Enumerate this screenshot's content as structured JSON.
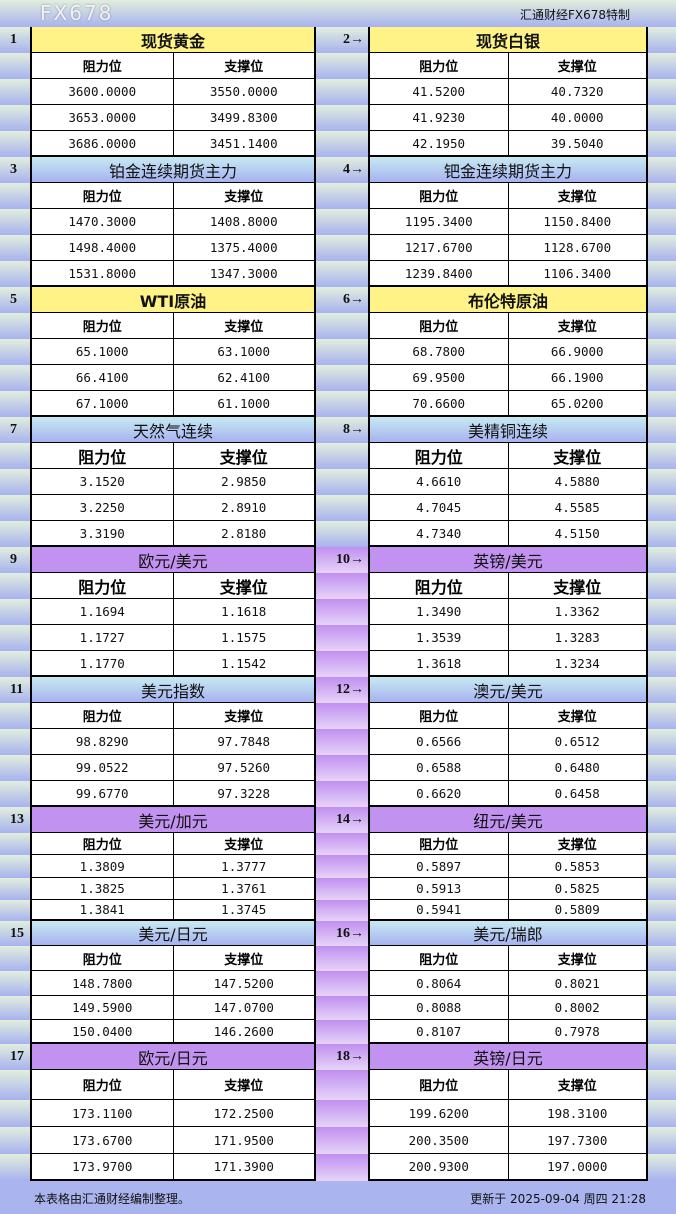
{
  "header": {
    "brand": "汇通财经FX678特制"
  },
  "labels": {
    "resistance": "阻力位",
    "support": "支撑位"
  },
  "colors": {
    "yellow": "#fff388",
    "blue": "#a7b2f0",
    "purple": "#c192f0"
  },
  "sections": [
    {
      "num": "1",
      "title": "现货黄金",
      "style": "yellow",
      "rows": [
        [
          "3600.0000",
          "3550.0000"
        ],
        [
          "3653.0000",
          "3499.8300"
        ],
        [
          "3686.0000",
          "3451.1400"
        ]
      ]
    },
    {
      "num": "2→",
      "title": "现货白银",
      "style": "yellow",
      "rows": [
        [
          "41.5200",
          "40.7320"
        ],
        [
          "41.9230",
          "40.0000"
        ],
        [
          "42.1950",
          "39.5040"
        ]
      ]
    },
    {
      "num": "3",
      "title": "铂金连续期货主力",
      "style": "blue",
      "rows": [
        [
          "1470.3000",
          "1408.8000"
        ],
        [
          "1498.4000",
          "1375.4000"
        ],
        [
          "1531.8000",
          "1347.3000"
        ]
      ]
    },
    {
      "num": "4→",
      "title": "钯金连续期货主力",
      "style": "blue",
      "rows": [
        [
          "1195.3400",
          "1150.8400"
        ],
        [
          "1217.6700",
          "1128.6700"
        ],
        [
          "1239.8400",
          "1106.3400"
        ]
      ]
    },
    {
      "num": "5",
      "title": "WTI原油",
      "style": "yellow",
      "rows": [
        [
          "65.1000",
          "63.1000"
        ],
        [
          "66.4100",
          "62.4100"
        ],
        [
          "67.1000",
          "61.1000"
        ]
      ]
    },
    {
      "num": "6→",
      "title": "布伦特原油",
      "style": "yellow",
      "rows": [
        [
          "68.7800",
          "66.9000"
        ],
        [
          "69.9500",
          "66.1900"
        ],
        [
          "70.6600",
          "65.0200"
        ]
      ]
    },
    {
      "num": "7",
      "title": "天然气连续",
      "style": "blue",
      "rows": [
        [
          "3.1520",
          "2.9850"
        ],
        [
          "3.2250",
          "2.8910"
        ],
        [
          "3.3190",
          "2.8180"
        ]
      ]
    },
    {
      "num": "8→",
      "title": "美精铜连续",
      "style": "blue",
      "rows": [
        [
          "4.6610",
          "4.5880"
        ],
        [
          "4.7045",
          "4.5585"
        ],
        [
          "4.7340",
          "4.5150"
        ]
      ]
    },
    {
      "num": "9",
      "title": "欧元/美元",
      "style": "purple",
      "rows": [
        [
          "1.1694",
          "1.1618"
        ],
        [
          "1.1727",
          "1.1575"
        ],
        [
          "1.1770",
          "1.1542"
        ]
      ]
    },
    {
      "num": "10→",
      "title": "英镑/美元",
      "style": "purple",
      "rows": [
        [
          "1.3490",
          "1.3362"
        ],
        [
          "1.3539",
          "1.3283"
        ],
        [
          "1.3618",
          "1.3234"
        ]
      ]
    },
    {
      "num": "11",
      "title": "美元指数",
      "style": "blue",
      "rows": [
        [
          "98.8290",
          "97.7848"
        ],
        [
          "99.0522",
          "97.5260"
        ],
        [
          "99.6770",
          "97.3228"
        ]
      ]
    },
    {
      "num": "12→",
      "title": "澳元/美元",
      "style": "blue",
      "rows": [
        [
          "0.6566",
          "0.6512"
        ],
        [
          "0.6588",
          "0.6480"
        ],
        [
          "0.6620",
          "0.6458"
        ]
      ]
    },
    {
      "num": "13",
      "title": "美元/加元",
      "style": "purple",
      "rows": [
        [
          "1.3809",
          "1.3777"
        ],
        [
          "1.3825",
          "1.3761"
        ],
        [
          "1.3841",
          "1.3745"
        ]
      ]
    },
    {
      "num": "14→",
      "title": "纽元/美元",
      "style": "purple",
      "rows": [
        [
          "0.5897",
          "0.5853"
        ],
        [
          "0.5913",
          "0.5825"
        ],
        [
          "0.5941",
          "0.5809"
        ]
      ]
    },
    {
      "num": "15",
      "title": "美元/日元",
      "style": "blue",
      "rows": [
        [
          "148.7800",
          "147.5200"
        ],
        [
          "149.5900",
          "147.0700"
        ],
        [
          "150.0400",
          "146.2600"
        ]
      ]
    },
    {
      "num": "16→",
      "title": "美元/瑞郎",
      "style": "blue",
      "rows": [
        [
          "0.8064",
          "0.8021"
        ],
        [
          "0.8088",
          "0.8002"
        ],
        [
          "0.8107",
          "0.7978"
        ]
      ]
    },
    {
      "num": "17",
      "title": "欧元/日元",
      "style": "purple",
      "rows": [
        [
          "173.1100",
          "172.2500"
        ],
        [
          "173.6700",
          "171.9500"
        ],
        [
          "173.9700",
          "171.3900"
        ]
      ]
    },
    {
      "num": "18→",
      "title": "英镑/日元",
      "style": "purple",
      "rows": [
        [
          "199.6200",
          "198.3100"
        ],
        [
          "200.3500",
          "197.7300"
        ],
        [
          "200.9300",
          "197.0000"
        ]
      ]
    }
  ],
  "footer": {
    "note": "本表格由汇通财经编制整理。",
    "updated": "更新于 2025-09-04 周四 21:28"
  },
  "watermark": "FX678"
}
